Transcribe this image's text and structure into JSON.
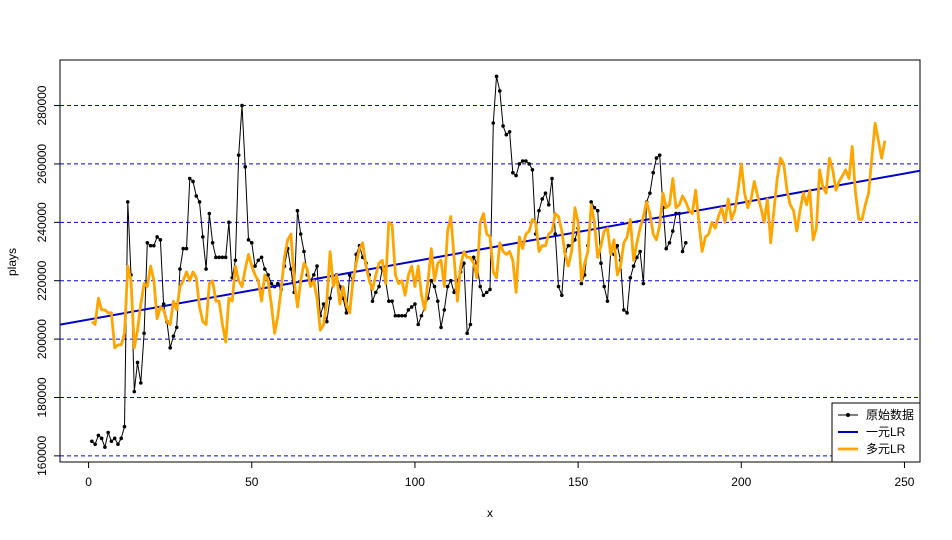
{
  "chart_data": {
    "type": "line",
    "x_label": "x",
    "y_label": "plays",
    "xlim": [
      -8.76,
      254.76
    ],
    "xticks": [
      0,
      50,
      100,
      150,
      200,
      250
    ],
    "ylim": [
      157900,
      295600
    ],
    "yticks": [
      160000,
      180000,
      200000,
      220000,
      240000,
      260000,
      280000
    ],
    "grid": true,
    "legend": "bottomright",
    "series": [
      {
        "name": "原始数据",
        "color": "#000000",
        "kind": "points_line",
        "x": [
          1,
          2,
          3,
          4,
          5,
          6,
          7,
          8,
          9,
          10,
          11,
          12,
          13,
          14,
          15,
          16,
          17,
          18,
          19,
          20,
          21,
          22,
          23,
          24,
          25,
          26,
          27,
          28,
          29,
          30,
          31,
          32,
          33,
          34,
          35,
          36,
          37,
          38,
          39,
          40,
          41,
          42,
          43,
          44,
          45,
          46,
          47,
          48,
          49,
          50,
          51,
          52,
          53,
          54,
          55,
          56,
          57,
          58,
          59,
          60,
          61,
          62,
          63,
          64,
          65,
          66,
          67,
          68,
          69,
          70,
          71,
          72,
          73,
          74,
          75,
          76,
          77,
          78,
          79,
          80,
          81,
          82,
          83,
          84,
          85,
          86,
          87,
          88,
          89,
          90,
          91,
          92,
          93,
          94,
          95,
          96,
          97,
          98,
          99,
          100,
          101,
          102,
          103,
          104,
          105,
          106,
          107,
          108,
          109,
          110,
          111,
          112,
          113,
          114,
          115,
          116,
          117,
          118,
          119,
          120,
          121,
          122,
          123,
          124,
          125,
          126,
          127,
          128,
          129,
          130,
          131,
          132,
          133,
          134,
          135,
          136,
          137,
          138,
          139,
          140,
          141,
          142,
          143,
          144,
          145,
          146,
          147,
          148,
          149,
          150,
          151,
          152,
          153,
          154,
          155,
          156,
          157,
          158,
          159,
          160,
          161,
          162,
          163,
          164,
          165,
          166,
          167,
          168,
          169,
          170,
          171,
          172,
          173,
          174,
          175,
          176,
          177,
          178,
          179,
          180,
          181,
          182,
          183
        ],
        "values": [
          165000,
          164000,
          167000,
          166000,
          163000,
          168000,
          165000,
          166000,
          164000,
          166000,
          170000,
          247000,
          222000,
          182000,
          192000,
          185000,
          202000,
          233000,
          232000,
          232000,
          235000,
          234000,
          212000,
          206000,
          197000,
          201000,
          204000,
          224000,
          231000,
          231000,
          255000,
          254000,
          249000,
          247000,
          235000,
          224000,
          243000,
          233000,
          228000,
          228000,
          228000,
          228000,
          240000,
          221000,
          227000,
          263000,
          280000,
          259000,
          234000,
          233000,
          225000,
          227000,
          228000,
          224000,
          222000,
          219000,
          218000,
          219000,
          217000,
          225000,
          231000,
          224000,
          216000,
          244000,
          236000,
          230000,
          222000,
          220000,
          222000,
          225000,
          208000,
          212000,
          206000,
          214000,
          220000,
          222000,
          218000,
          214000,
          209000,
          222000,
          220000,
          229000,
          232000,
          228000,
          226000,
          222000,
          213000,
          216000,
          218000,
          224000,
          220000,
          213000,
          213000,
          208000,
          208000,
          208000,
          208000,
          210000,
          211000,
          212000,
          205000,
          208000,
          211000,
          214000,
          220000,
          218000,
          213000,
          204000,
          210000,
          218000,
          220000,
          216000,
          220000,
          223000,
          226000,
          202000,
          205000,
          228000,
          226000,
          218000,
          215000,
          216000,
          217000,
          274000,
          290000,
          285000,
          273000,
          270000,
          271000,
          257000,
          256000,
          260000,
          261000,
          261000,
          260000,
          258000,
          236000,
          244000,
          248000,
          250000,
          246000,
          255000,
          236000,
          218000,
          215000,
          230000,
          232000,
          232000,
          234000,
          238000,
          219000,
          222000,
          232000,
          247000,
          245000,
          244000,
          226000,
          218000,
          213000,
          230000,
          229000,
          232000,
          227000,
          210000,
          209000,
          221000,
          225000,
          228000,
          230000,
          219000,
          247000,
          250000,
          257000,
          262000,
          263000,
          245000,
          231000,
          233000,
          237000,
          243000,
          243000,
          230000,
          233000
        ]
      },
      {
        "name": "一元LR",
        "color": "#0000cd",
        "kind": "abline",
        "intercept": 206700,
        "slope": 200
      },
      {
        "name": "多元LR",
        "color": "#ffa500",
        "kind": "line",
        "x": [
          1,
          2,
          3,
          4,
          5,
          6,
          7,
          8,
          9,
          10,
          11,
          12,
          13,
          14,
          15,
          16,
          17,
          18,
          19,
          20,
          21,
          22,
          23,
          24,
          25,
          26,
          27,
          28,
          29,
          30,
          31,
          32,
          33,
          34,
          35,
          36,
          37,
          38,
          39,
          40,
          41,
          42,
          43,
          44,
          45,
          46,
          47,
          48,
          49,
          50,
          51,
          52,
          53,
          54,
          55,
          56,
          57,
          58,
          59,
          60,
          61,
          62,
          63,
          64,
          65,
          66,
          67,
          68,
          69,
          70,
          71,
          72,
          73,
          74,
          75,
          76,
          77,
          78,
          79,
          80,
          81,
          82,
          83,
          84,
          85,
          86,
          87,
          88,
          89,
          90,
          91,
          92,
          93,
          94,
          95,
          96,
          97,
          98,
          99,
          100,
          101,
          102,
          103,
          104,
          105,
          106,
          107,
          108,
          109,
          110,
          111,
          112,
          113,
          114,
          115,
          116,
          117,
          118,
          119,
          120,
          121,
          122,
          123,
          124,
          125,
          126,
          127,
          128,
          129,
          130,
          131,
          132,
          133,
          134,
          135,
          136,
          137,
          138,
          139,
          140,
          141,
          142,
          143,
          144,
          145,
          146,
          147,
          148,
          149,
          150,
          151,
          152,
          153,
          154,
          155,
          156,
          157,
          158,
          159,
          160,
          161,
          162,
          163,
          164,
          165,
          166,
          167,
          168,
          169,
          170,
          171,
          172,
          173,
          174,
          175,
          176,
          177,
          178,
          179,
          180,
          181,
          182,
          183,
          184,
          185,
          186,
          187,
          188,
          189,
          190,
          191,
          192,
          193,
          194,
          195,
          196,
          197,
          198,
          199,
          200,
          201,
          202,
          203,
          204,
          205,
          206,
          207,
          208,
          209,
          210,
          211,
          212,
          213,
          214,
          215,
          216,
          217,
          218,
          219,
          220,
          221,
          222,
          223,
          224,
          225,
          226,
          227,
          228,
          229,
          230,
          231,
          232,
          233,
          234,
          235,
          236,
          237,
          238,
          239,
          240,
          241,
          242,
          243,
          244
        ],
        "values": [
          206000,
          205000,
          214000,
          210000,
          210000,
          209000,
          209000,
          197000,
          198000,
          198000,
          202000,
          225000,
          220000,
          197000,
          203000,
          212000,
          219000,
          218000,
          225000,
          220000,
          207000,
          211000,
          210000,
          206000,
          205000,
          213000,
          210000,
          218000,
          220000,
          223000,
          220000,
          223000,
          221000,
          211000,
          206000,
          205000,
          219000,
          220000,
          213000,
          213000,
          205000,
          199000,
          214000,
          213000,
          225000,
          220000,
          218000,
          224000,
          229000,
          225000,
          222000,
          220000,
          213000,
          222000,
          220000,
          212000,
          202000,
          208000,
          217000,
          228000,
          234000,
          236000,
          220000,
          211000,
          220000,
          226000,
          224000,
          218000,
          220000,
          214000,
          203000,
          205000,
          213000,
          230000,
          218000,
          222000,
          212000,
          218000,
          212000,
          209000,
          220000,
          226000,
          231000,
          233000,
          225000,
          220000,
          217000,
          222000,
          226000,
          227000,
          219000,
          240000,
          239000,
          222000,
          219000,
          220000,
          215000,
          222000,
          225000,
          218000,
          225000,
          215000,
          210000,
          220000,
          231000,
          220000,
          226000,
          227000,
          218000,
          237000,
          242000,
          228000,
          213000,
          225000,
          230000,
          228000,
          228000,
          226000,
          221000,
          240000,
          243000,
          236000,
          235000,
          223000,
          221000,
          233000,
          230000,
          229000,
          230000,
          227000,
          216000,
          235000,
          231000,
          236000,
          237000,
          241000,
          240000,
          230000,
          232000,
          232000,
          236000,
          237000,
          243000,
          242000,
          237000,
          229000,
          225000,
          230000,
          245000,
          240000,
          220000,
          226000,
          230000,
          246000,
          240000,
          228000,
          232000,
          237000,
          238000,
          229000,
          234000,
          222000,
          225000,
          233000,
          235000,
          241000,
          227000,
          233000,
          238000,
          242000,
          247000,
          243000,
          236000,
          234000,
          239000,
          250000,
          245000,
          246000,
          255000,
          245000,
          246000,
          249000,
          247000,
          244000,
          243000,
          251000,
          240000,
          230000,
          235000,
          236000,
          240000,
          238000,
          242000,
          245000,
          240000,
          248000,
          241000,
          244000,
          251000,
          260000,
          250000,
          245000,
          248000,
          254000,
          249000,
          245000,
          240000,
          248000,
          233000,
          244000,
          255000,
          262000,
          260000,
          251000,
          246000,
          244000,
          237000,
          244000,
          250000,
          246000,
          251000,
          234000,
          238000,
          258000,
          252000,
          250000,
          262000,
          258000,
          251000,
          254000,
          256000,
          258000,
          255000,
          266000,
          250000,
          241000,
          241000,
          246000,
          250000,
          262000,
          274000,
          268000,
          262000,
          268000
        ]
      }
    ]
  }
}
